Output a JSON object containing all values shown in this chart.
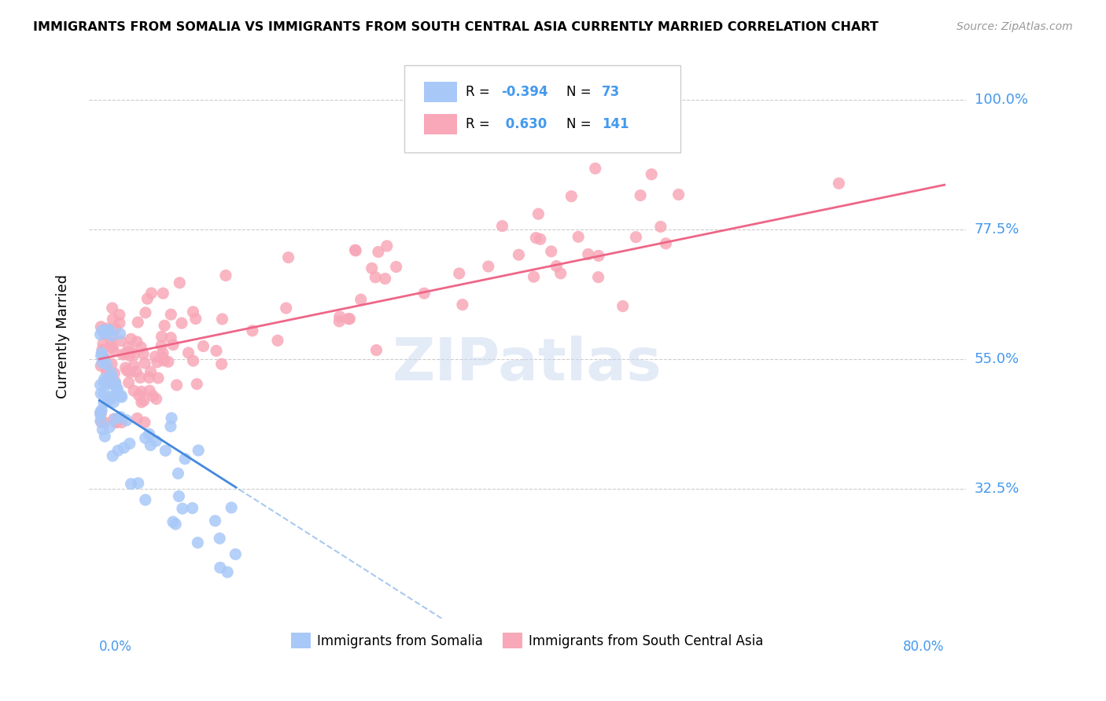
{
  "title": "IMMIGRANTS FROM SOMALIA VS IMMIGRANTS FROM SOUTH CENTRAL ASIA CURRENTLY MARRIED CORRELATION CHART",
  "source": "Source: ZipAtlas.com",
  "ylabel": "Currently Married",
  "yticks": [
    "100.0%",
    "77.5%",
    "55.0%",
    "32.5%"
  ],
  "ytick_vals": [
    1.0,
    0.775,
    0.55,
    0.325
  ],
  "xlim": [
    0.0,
    0.8
  ],
  "ylim": [
    0.1,
    1.08
  ],
  "legend1_label": "Immigrants from Somalia",
  "legend2_label": "Immigrants from South Central Asia",
  "R1": -0.394,
  "N1": 73,
  "R2": 0.63,
  "N2": 141,
  "color_somalia": "#a8c8f8",
  "color_south_asia": "#f8a8b8",
  "line_somalia": "#4488dd",
  "line_south_asia": "#ee6688",
  "watermark": "ZIPatlas"
}
